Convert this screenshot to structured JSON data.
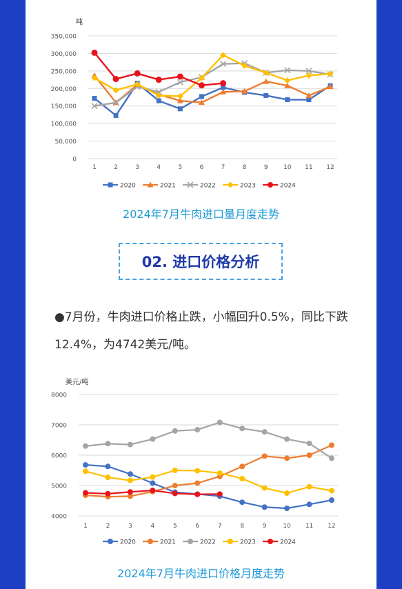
{
  "section": {
    "title": "02. 进口价格分析"
  },
  "paragraph": "●7月份，牛肉进口价格止跌，小幅回升0.5%，同比下跌12.4%，为4742美元/吨。",
  "chart_data": [
    {
      "type": "line",
      "title": "2024年7月牛肉进口量月度走势",
      "ylabel": "吨",
      "categories": [
        "1",
        "2",
        "3",
        "4",
        "5",
        "6",
        "7",
        "8",
        "9",
        "10",
        "11",
        "12"
      ],
      "y_ticks": [
        "0",
        "50,000",
        "100,000",
        "150,000",
        "200,000",
        "250,000",
        "300,000",
        "350,000"
      ],
      "ylim": [
        0,
        350000
      ],
      "grid": true,
      "legend": "bottom",
      "series": [
        {
          "name": "2020",
          "color": "#4472c4",
          "marker": "square",
          "values": [
            172000,
            123000,
            215000,
            165000,
            142000,
            177000,
            203000,
            189000,
            180000,
            168000,
            168000,
            208000
          ]
        },
        {
          "name": "2021",
          "color": "#ed7d31",
          "marker": "triangle",
          "values": [
            237000,
            160000,
            211000,
            183000,
            165000,
            160000,
            190000,
            192000,
            220000,
            208000,
            180000,
            205000
          ]
        },
        {
          "name": "2022",
          "color": "#a5a5a5",
          "marker": "x",
          "values": [
            150000,
            160000,
            205000,
            190000,
            218000,
            232000,
            270000,
            272000,
            245000,
            252000,
            250000,
            240000
          ]
        },
        {
          "name": "2023",
          "color": "#ffc000",
          "marker": "diamond",
          "values": [
            230000,
            195000,
            212000,
            180000,
            178000,
            230000,
            295000,
            265000,
            245000,
            223000,
            237000,
            242000
          ]
        },
        {
          "name": "2024",
          "color": "#e8141c",
          "marker": "circle",
          "values": [
            302000,
            227000,
            243000,
            225000,
            234000,
            209000,
            215000,
            null,
            null,
            null,
            null,
            null
          ]
        }
      ]
    },
    {
      "type": "line",
      "title": "2024年7月牛肉进口价格月度走势",
      "ylabel": "美元/吨",
      "categories": [
        "1",
        "2",
        "3",
        "4",
        "5",
        "6",
        "7",
        "8",
        "9",
        "10",
        "11",
        "12"
      ],
      "y_ticks": [
        "4000",
        "5000",
        "6000",
        "7000",
        "8000"
      ],
      "ylim": [
        4000,
        8000
      ],
      "grid": true,
      "legend": "bottom",
      "series": [
        {
          "name": "2020",
          "color": "#4472c4",
          "marker": "circle",
          "values": [
            5680,
            5630,
            5380,
            5080,
            4780,
            4720,
            4650,
            4450,
            4290,
            4250,
            4380,
            4520
          ]
        },
        {
          "name": "2021",
          "color": "#ed7d31",
          "marker": "circle",
          "values": [
            4680,
            4630,
            4650,
            4800,
            5000,
            5080,
            5300,
            5630,
            5970,
            5900,
            6000,
            6330
          ]
        },
        {
          "name": "2022",
          "color": "#a5a5a5",
          "marker": "circle",
          "values": [
            6300,
            6380,
            6350,
            6530,
            6800,
            6840,
            7080,
            6880,
            6770,
            6530,
            6390,
            5900
          ]
        },
        {
          "name": "2023",
          "color": "#ffc000",
          "marker": "circle",
          "values": [
            5470,
            5270,
            5170,
            5280,
            5500,
            5490,
            5410,
            5230,
            4920,
            4750,
            4960,
            4830
          ]
        },
        {
          "name": "2024",
          "color": "#e8141c",
          "marker": "circle",
          "values": [
            4760,
            4730,
            4790,
            4840,
            4740,
            4710,
            4720,
            null,
            null,
            null,
            null,
            null
          ]
        }
      ]
    }
  ]
}
